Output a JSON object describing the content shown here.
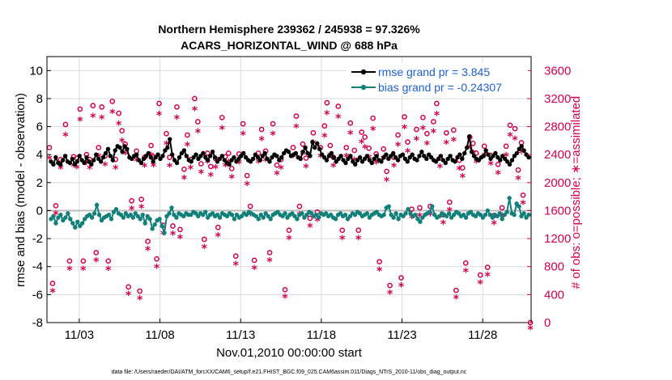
{
  "chart_data": {
    "type": "line",
    "title_line1": "Northern Hemisphere 239362 / 245938 = 97.326%",
    "title_line2": "ACARS_HORIZONTAL_WIND @ 688 hPa",
    "xlabel": "Nov.01,2010 00:00:00 start",
    "ylabel_left": "rmse and bias (model - observation)",
    "ylabel_right": "# of obs: o=possible; ∗=assimilated",
    "footer": "data file: /Users/raeder/DAI/ATM_forcXX/CAM6_setup/f.e21.FHIST_BGC.f09_025.CAM6assim.011/Diags_NTrS_2010-11/obs_diag_output.nc",
    "xlim": [
      1,
      31
    ],
    "x_ticks": [
      3,
      8,
      13,
      18,
      23,
      28
    ],
    "x_tick_labels": [
      "11/03",
      "11/08",
      "11/13",
      "11/18",
      "11/23",
      "11/28"
    ],
    "ylim_left": [
      -8,
      11
    ],
    "y_ticks_left": [
      -8,
      -6,
      -4,
      -2,
      0,
      2,
      4,
      6,
      8,
      10
    ],
    "ylim_right": [
      0,
      3800
    ],
    "y_ticks_right": [
      0,
      400,
      800,
      1200,
      1600,
      2000,
      2400,
      2800,
      3200,
      3600
    ],
    "legend_position": "top-right",
    "colors": {
      "rmse": "#000000",
      "bias": "#12807a",
      "obs": "#d6004f",
      "legend_text": "#1f5fd6",
      "zero_line": "#bdbdbd",
      "grid": "#dcdcdc"
    },
    "series": [
      {
        "name": "rmse grand pr = 3.845",
        "values": [
          3.5,
          3.3,
          3.8,
          3.4,
          3.3,
          3.6,
          3.9,
          3.5,
          3.4,
          3.7,
          3.3,
          3.5,
          3.9,
          3.6,
          3.4,
          3.8,
          3.5,
          3.3,
          3.6,
          4.0,
          3.7,
          3.5,
          3.8,
          4.1,
          4.4,
          3.9,
          3.6,
          4.3,
          4.6,
          4.5,
          4.2,
          4.6,
          4.4,
          3.8,
          3.7,
          3.9,
          4.0,
          3.6,
          3.4,
          3.7,
          3.9,
          4.1,
          3.8,
          3.5,
          3.8,
          4.0,
          3.7,
          3.9,
          4.3,
          4.5,
          5.1,
          4.0,
          3.6,
          3.4,
          3.8,
          4.1,
          4.3,
          3.9,
          3.6,
          3.5,
          3.8,
          4.0,
          3.7,
          3.9,
          4.1,
          3.8,
          3.6,
          3.9,
          4.2,
          3.8,
          3.5,
          3.7,
          3.9,
          3.6,
          3.4,
          3.3,
          3.6,
          3.8,
          3.5,
          3.7,
          3.9,
          4.1,
          3.8,
          3.6,
          3.5,
          3.7,
          4.0,
          3.8,
          3.6,
          3.9,
          4.1,
          3.7,
          3.5,
          3.8,
          4.0,
          3.9,
          3.6,
          3.8,
          4.1,
          4.3,
          4.2,
          3.9,
          4.0,
          4.1,
          3.8,
          3.7,
          4.2,
          4.5,
          4.1,
          3.9,
          4.9,
          4.5,
          4.8,
          4.4,
          4.0,
          3.8,
          3.6,
          3.9,
          4.1,
          3.8,
          3.5,
          3.7,
          3.9,
          3.6,
          3.4,
          3.7,
          3.9,
          3.5,
          3.3,
          3.6,
          3.8,
          3.5,
          3.7,
          3.9,
          3.6,
          3.4,
          3.7,
          3.9,
          3.6,
          3.5,
          3.8,
          4.0,
          3.7,
          3.9,
          4.1,
          3.8,
          3.6,
          3.9,
          4.0,
          3.7,
          3.5,
          3.8,
          4.0,
          3.7,
          3.6,
          3.9,
          4.2,
          3.9,
          3.7,
          4.0,
          3.8,
          3.6,
          3.5,
          3.7,
          3.9,
          3.6,
          3.4,
          3.7,
          3.9,
          3.6,
          3.5,
          3.8,
          4.0,
          3.7,
          4.1,
          4.5,
          5.3,
          4.2,
          3.9,
          3.7,
          3.6,
          3.8,
          3.9,
          4.3,
          4.0,
          3.7,
          3.9,
          4.1,
          3.8,
          3.6,
          3.9,
          3.7,
          3.5,
          3.3,
          3.6,
          3.9,
          4.1,
          4.4,
          4.6,
          4.3,
          4.0,
          3.8
        ]
      },
      {
        "name": "bias grand pr = -0.24307",
        "values": [
          -0.6,
          -0.4,
          -0.9,
          -0.5,
          -0.3,
          -0.7,
          -0.5,
          -0.2,
          -0.6,
          -0.9,
          -1.2,
          -0.8,
          -1.1,
          -0.9,
          -0.6,
          -0.4,
          -0.3,
          -0.5,
          -0.2,
          0.4,
          -0.3,
          -0.7,
          -0.5,
          -0.4,
          -0.3,
          -0.6,
          -0.1,
          0.1,
          -0.2,
          -0.3,
          -0.5,
          -0.2,
          -0.4,
          -0.3,
          -0.5,
          -0.2,
          -0.4,
          -0.6,
          -0.3,
          -0.9,
          -0.4,
          -0.6,
          -1.3,
          -1.0,
          -0.7,
          -0.6,
          -1.1,
          -1.6,
          -0.4,
          -0.2,
          0.2,
          -0.3,
          -0.5,
          -0.2,
          -0.3,
          -0.4,
          -0.2,
          -0.3,
          -0.3,
          -0.1,
          -0.2,
          -0.4,
          -0.2,
          -0.3,
          -0.1,
          -0.5,
          -0.3,
          -0.2,
          -0.4,
          -0.3,
          -0.5,
          -0.2,
          -0.3,
          -0.4,
          -0.2,
          -0.3,
          -0.6,
          -0.3,
          -0.5,
          -0.4,
          -0.2,
          -0.3,
          -0.1,
          -0.2,
          -0.3,
          -0.4,
          -0.6,
          -0.3,
          -0.5,
          -0.2,
          -0.4,
          -0.6,
          -0.3,
          -0.2,
          -0.1,
          -0.3,
          -0.4,
          -0.2,
          -0.5,
          -0.3,
          -0.2,
          -0.4,
          -0.6,
          -0.3,
          -0.2,
          -0.5,
          -0.3,
          -0.1,
          -0.2,
          -0.4,
          -0.3,
          -0.5,
          -0.2,
          -0.3,
          -0.2,
          -0.4,
          -0.3,
          -0.5,
          -0.6,
          -0.3,
          -0.2,
          -0.4,
          -0.3,
          -0.6,
          -0.4,
          -0.2,
          -0.3,
          -0.1,
          -0.2,
          -0.4,
          -0.3,
          -0.2,
          -0.5,
          -0.3,
          -0.2,
          -0.1,
          -0.3,
          -0.4,
          -0.3,
          0.2,
          0.3,
          -0.3,
          -0.5,
          -0.2,
          -0.6,
          -0.3,
          -0.4,
          -0.2,
          0.1,
          -0.2,
          -0.4,
          -0.3,
          -0.6,
          -0.8,
          -0.5,
          -0.3,
          -0.2,
          -0.1,
          0.3,
          -0.3,
          -0.5,
          -0.4,
          -0.2,
          -0.3,
          -0.4,
          -0.2,
          -0.5,
          -0.3,
          -0.1,
          -0.2,
          -0.4,
          -0.3,
          -0.5,
          -0.2,
          -0.1,
          -0.3,
          -0.4,
          -0.2,
          -0.3,
          -0.5,
          -0.3,
          0.0,
          -0.3,
          -0.5,
          -0.3,
          -0.4,
          -0.2,
          -0.6,
          -0.3,
          -0.1,
          0.9,
          -0.2,
          -0.3,
          0.5,
          0.3,
          -0.4,
          -0.2,
          -0.5,
          -0.3
        ]
      }
    ],
    "obs_possible": [
      [
        1.15,
        2500
      ],
      [
        1.35,
        560
      ],
      [
        1.55,
        1670
      ],
      [
        1.85,
        2330
      ],
      [
        2.15,
        2830
      ],
      [
        2.4,
        880
      ],
      [
        2.65,
        2370
      ],
      [
        2.85,
        2350
      ],
      [
        3.05,
        3050
      ],
      [
        3.25,
        880
      ],
      [
        3.45,
        2400
      ],
      [
        3.65,
        2330
      ],
      [
        3.85,
        3100
      ],
      [
        4.05,
        1000
      ],
      [
        4.2,
        2500
      ],
      [
        4.4,
        3080
      ],
      [
        4.6,
        2380
      ],
      [
        4.8,
        880
      ],
      [
        5.05,
        3160
      ],
      [
        5.25,
        2330
      ],
      [
        5.45,
        2990
      ],
      [
        5.65,
        2740
      ],
      [
        5.85,
        2550
      ],
      [
        6.05,
        510
      ],
      [
        6.25,
        1740
      ],
      [
        6.55,
        2450
      ],
      [
        6.75,
        450
      ],
      [
        6.85,
        1760
      ],
      [
        7.05,
        2360
      ],
      [
        7.25,
        1160
      ],
      [
        7.45,
        2530
      ],
      [
        7.6,
        2370
      ],
      [
        7.8,
        910
      ],
      [
        7.95,
        3130
      ],
      [
        8.2,
        1390
      ],
      [
        8.4,
        2700
      ],
      [
        8.6,
        2360
      ],
      [
        8.8,
        1380
      ],
      [
        9.05,
        3080
      ],
      [
        9.25,
        1330
      ],
      [
        9.5,
        2190
      ],
      [
        9.7,
        2680
      ],
      [
        9.9,
        2330
      ],
      [
        10.15,
        3200
      ],
      [
        10.35,
        2870
      ],
      [
        10.55,
        2270
      ],
      [
        10.75,
        1190
      ],
      [
        10.95,
        2420
      ],
      [
        11.15,
        2230
      ],
      [
        11.45,
        2340
      ],
      [
        11.6,
        1360
      ],
      [
        11.85,
        2930
      ],
      [
        12.05,
        2370
      ],
      [
        12.25,
        2420
      ],
      [
        12.45,
        2200
      ],
      [
        12.7,
        950
      ],
      [
        12.9,
        2410
      ],
      [
        13.15,
        2840
      ],
      [
        13.4,
        2100
      ],
      [
        13.6,
        1660
      ],
      [
        13.85,
        890
      ],
      [
        14.1,
        2420
      ],
      [
        14.3,
        2760
      ],
      [
        14.55,
        2450
      ],
      [
        14.8,
        1000
      ],
      [
        15.0,
        2840
      ],
      [
        15.25,
        2250
      ],
      [
        15.5,
        2330
      ],
      [
        15.75,
        470
      ],
      [
        16.0,
        1320
      ],
      [
        16.25,
        2500
      ],
      [
        16.45,
        2950
      ],
      [
        16.65,
        1660
      ],
      [
        16.85,
        2550
      ],
      [
        17.05,
        2350
      ],
      [
        17.3,
        1490
      ],
      [
        17.5,
        2710
      ],
      [
        17.75,
        1580
      ],
      [
        17.95,
        2500
      ],
      [
        18.2,
        2810
      ],
      [
        18.35,
        3140
      ],
      [
        18.55,
        2530
      ],
      [
        18.75,
        2360
      ],
      [
        19.05,
        3090
      ],
      [
        19.3,
        1320
      ],
      [
        19.55,
        2500
      ],
      [
        19.8,
        2850
      ],
      [
        20.05,
        2460
      ],
      [
        20.3,
        1320
      ],
      [
        20.5,
        2720
      ],
      [
        20.7,
        2650
      ],
      [
        20.95,
        2490
      ],
      [
        21.2,
        2920
      ],
      [
        21.4,
        2410
      ],
      [
        21.6,
        870
      ],
      [
        21.85,
        2480
      ],
      [
        22.05,
        2160
      ],
      [
        22.25,
        530
      ],
      [
        22.5,
        2360
      ],
      [
        22.75,
        2680
      ],
      [
        22.95,
        640
      ],
      [
        23.15,
        2940
      ],
      [
        23.35,
        2580
      ],
      [
        23.6,
        1620
      ],
      [
        23.9,
        2760
      ],
      [
        24.1,
        1640
      ],
      [
        24.3,
        2930
      ],
      [
        24.55,
        2700
      ],
      [
        24.75,
        1660
      ],
      [
        24.95,
        2870
      ],
      [
        25.15,
        3130
      ],
      [
        25.35,
        2350
      ],
      [
        25.55,
        1540
      ],
      [
        25.75,
        2710
      ],
      [
        25.95,
        1720
      ],
      [
        26.2,
        2750
      ],
      [
        26.35,
        460
      ],
      [
        26.55,
        2320
      ],
      [
        26.75,
        2210
      ],
      [
        26.95,
        850
      ],
      [
        27.2,
        2650
      ],
      [
        27.4,
        2560
      ],
      [
        27.6,
        2420
      ],
      [
        27.85,
        680
      ],
      [
        28.1,
        2520
      ],
      [
        28.3,
        790
      ],
      [
        28.5,
        2390
      ],
      [
        28.7,
        1530
      ],
      [
        28.95,
        2260
      ],
      [
        29.2,
        1640
      ],
      [
        29.45,
        2520
      ],
      [
        29.7,
        2820
      ],
      [
        30.0,
        2770
      ],
      [
        30.2,
        2180
      ],
      [
        30.4,
        2570
      ],
      [
        30.5,
        1820
      ],
      [
        30.95,
        0
      ]
    ],
    "obs_assimilated": [
      [
        1.15,
        2430
      ],
      [
        1.35,
        530
      ],
      [
        1.55,
        1640
      ],
      [
        1.85,
        2290
      ],
      [
        2.15,
        2760
      ],
      [
        2.4,
        850
      ],
      [
        2.65,
        2330
      ],
      [
        2.85,
        2300
      ],
      [
        3.05,
        2980
      ],
      [
        3.25,
        850
      ],
      [
        3.45,
        2360
      ],
      [
        3.65,
        2290
      ],
      [
        3.85,
        3030
      ],
      [
        4.05,
        970
      ],
      [
        4.2,
        2460
      ],
      [
        4.4,
        3010
      ],
      [
        4.6,
        2340
      ],
      [
        4.8,
        850
      ],
      [
        5.05,
        3090
      ],
      [
        5.25,
        2290
      ],
      [
        5.45,
        2920
      ],
      [
        5.65,
        2680
      ],
      [
        5.85,
        2500
      ],
      [
        6.05,
        490
      ],
      [
        6.25,
        1710
      ],
      [
        6.55,
        2400
      ],
      [
        6.75,
        430
      ],
      [
        6.85,
        1730
      ],
      [
        7.05,
        2320
      ],
      [
        7.25,
        1130
      ],
      [
        7.45,
        2480
      ],
      [
        7.6,
        2330
      ],
      [
        7.8,
        880
      ],
      [
        7.95,
        3060
      ],
      [
        8.2,
        1360
      ],
      [
        8.4,
        2640
      ],
      [
        8.6,
        2320
      ],
      [
        8.8,
        1350
      ],
      [
        9.05,
        3010
      ],
      [
        9.25,
        1300
      ],
      [
        9.5,
        2150
      ],
      [
        9.7,
        2620
      ],
      [
        9.9,
        2290
      ],
      [
        10.15,
        3130
      ],
      [
        10.35,
        2810
      ],
      [
        10.55,
        2230
      ],
      [
        10.75,
        1160
      ],
      [
        10.95,
        2380
      ],
      [
        11.15,
        2190
      ],
      [
        11.45,
        2300
      ],
      [
        11.6,
        1330
      ],
      [
        11.85,
        2860
      ],
      [
        12.05,
        2330
      ],
      [
        12.25,
        2380
      ],
      [
        12.45,
        2160
      ],
      [
        12.7,
        920
      ],
      [
        12.9,
        2370
      ],
      [
        13.15,
        2780
      ],
      [
        13.4,
        2060
      ],
      [
        13.6,
        1630
      ],
      [
        13.85,
        860
      ],
      [
        14.1,
        2380
      ],
      [
        14.3,
        2700
      ],
      [
        14.55,
        2400
      ],
      [
        14.8,
        970
      ],
      [
        15.0,
        2780
      ],
      [
        15.25,
        2210
      ],
      [
        15.5,
        2290
      ],
      [
        15.75,
        450
      ],
      [
        16.0,
        1290
      ],
      [
        16.25,
        2460
      ],
      [
        16.45,
        2880
      ],
      [
        16.65,
        1630
      ],
      [
        16.85,
        2500
      ],
      [
        17.05,
        2310
      ],
      [
        17.3,
        1460
      ],
      [
        17.5,
        2650
      ],
      [
        17.75,
        1550
      ],
      [
        17.95,
        2460
      ],
      [
        18.2,
        2750
      ],
      [
        18.35,
        3070
      ],
      [
        18.55,
        2480
      ],
      [
        18.75,
        2320
      ],
      [
        19.05,
        3020
      ],
      [
        19.3,
        1290
      ],
      [
        19.55,
        2460
      ],
      [
        19.8,
        2790
      ],
      [
        20.05,
        2410
      ],
      [
        20.3,
        1290
      ],
      [
        20.5,
        2660
      ],
      [
        20.7,
        2590
      ],
      [
        20.95,
        2440
      ],
      [
        21.2,
        2850
      ],
      [
        21.4,
        2370
      ],
      [
        21.6,
        840
      ],
      [
        21.85,
        2430
      ],
      [
        22.05,
        2120
      ],
      [
        22.25,
        510
      ],
      [
        22.5,
        2320
      ],
      [
        22.75,
        2620
      ],
      [
        22.95,
        610
      ],
      [
        23.15,
        2870
      ],
      [
        23.35,
        2530
      ],
      [
        23.6,
        1590
      ],
      [
        23.9,
        2700
      ],
      [
        24.1,
        1610
      ],
      [
        24.3,
        2860
      ],
      [
        24.55,
        2640
      ],
      [
        24.75,
        1630
      ],
      [
        24.95,
        2810
      ],
      [
        25.15,
        3060
      ],
      [
        25.35,
        2310
      ],
      [
        25.55,
        1510
      ],
      [
        25.75,
        2650
      ],
      [
        25.95,
        1690
      ],
      [
        26.2,
        2690
      ],
      [
        26.35,
        440
      ],
      [
        26.55,
        2280
      ],
      [
        26.75,
        2170
      ],
      [
        26.95,
        820
      ],
      [
        27.2,
        2590
      ],
      [
        27.4,
        2510
      ],
      [
        27.6,
        2380
      ],
      [
        27.85,
        650
      ],
      [
        28.1,
        2470
      ],
      [
        28.3,
        760
      ],
      [
        28.5,
        2350
      ],
      [
        28.7,
        1500
      ],
      [
        28.95,
        2220
      ],
      [
        29.2,
        1610
      ],
      [
        29.45,
        2470
      ],
      [
        29.7,
        2760
      ],
      [
        30.0,
        2710
      ],
      [
        30.2,
        2140
      ],
      [
        30.4,
        2520
      ],
      [
        30.5,
        1790
      ],
      [
        30.95,
        0
      ]
    ]
  }
}
